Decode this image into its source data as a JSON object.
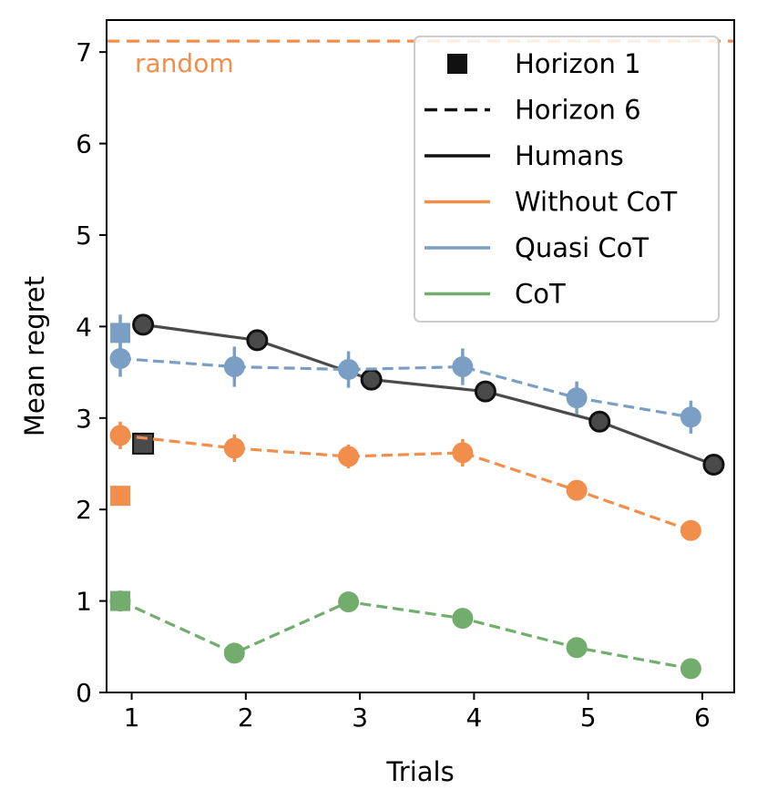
{
  "chart_data": {
    "type": "line",
    "xlabel": "Trials",
    "ylabel": "Mean regret",
    "xlim": [
      0.78,
      6.28
    ],
    "ylim": [
      0,
      7.35
    ],
    "xticks": [
      "1",
      "2",
      "3",
      "4",
      "5",
      "6"
    ],
    "yticks": [
      "0",
      "1",
      "2",
      "3",
      "4",
      "5",
      "6",
      "7"
    ],
    "grid": false,
    "legend_position": "top-right",
    "colors": {
      "humans": "#4a4a4a",
      "without_cot": "#f28e4b",
      "quasi_cot": "#7b9fc4",
      "cot": "#72ad6e",
      "random": "#f28e4b"
    },
    "random_line": {
      "value": 7.12,
      "label": "random"
    },
    "legend": [
      {
        "label": "Horizon 1",
        "style": "square",
        "color": "#111111"
      },
      {
        "label": "Horizon 6",
        "style": "dashed",
        "color": "#111111"
      },
      {
        "label": "Humans",
        "style": "solid",
        "color": "#111111"
      },
      {
        "label": "Without CoT",
        "style": "solid",
        "color": "#f28e4b"
      },
      {
        "label": "Quasi CoT",
        "style": "solid",
        "color": "#7b9fc4"
      },
      {
        "label": "CoT",
        "style": "solid",
        "color": "#72ad6e"
      }
    ],
    "series": [
      {
        "key": "humans",
        "linestyle": "solid",
        "x": [
          1.1,
          2.1,
          3.1,
          4.1,
          5.1,
          6.1
        ],
        "y": [
          4.02,
          3.85,
          3.42,
          3.29,
          2.96,
          2.49
        ],
        "err": [
          0.05,
          0.05,
          0.05,
          0.05,
          0.05,
          0.05
        ],
        "horizon1": {
          "x": 1.1,
          "y": 2.72,
          "err": 0.05
        }
      },
      {
        "key": "quasi_cot",
        "linestyle": "dashed",
        "x": [
          0.9,
          1.9,
          2.9,
          3.9,
          4.9,
          5.9
        ],
        "y": [
          3.65,
          3.56,
          3.53,
          3.56,
          3.22,
          3.01
        ],
        "err": [
          0.2,
          0.22,
          0.2,
          0.2,
          0.18,
          0.18
        ],
        "horizon1": {
          "x": 0.9,
          "y": 3.93,
          "err": 0.2
        }
      },
      {
        "key": "without_cot",
        "linestyle": "dashed",
        "x": [
          0.9,
          1.9,
          2.9,
          3.9,
          4.9,
          5.9
        ],
        "y": [
          2.81,
          2.67,
          2.58,
          2.62,
          2.21,
          1.77
        ],
        "err": [
          0.15,
          0.15,
          0.13,
          0.15,
          0.1,
          0.08
        ],
        "horizon1": {
          "x": 0.9,
          "y": 2.15,
          "err": 0.08
        }
      },
      {
        "key": "cot",
        "linestyle": "dashed",
        "x": [
          0.9,
          1.9,
          2.9,
          3.9,
          4.9,
          5.9
        ],
        "y": [
          1.0,
          0.43,
          0.99,
          0.81,
          0.49,
          0.26
        ],
        "err": [
          0.05,
          0.05,
          0.05,
          0.05,
          0.05,
          0.05
        ],
        "horizon1": {
          "x": 0.9,
          "y": 1.0,
          "err": 0.05
        }
      }
    ]
  }
}
